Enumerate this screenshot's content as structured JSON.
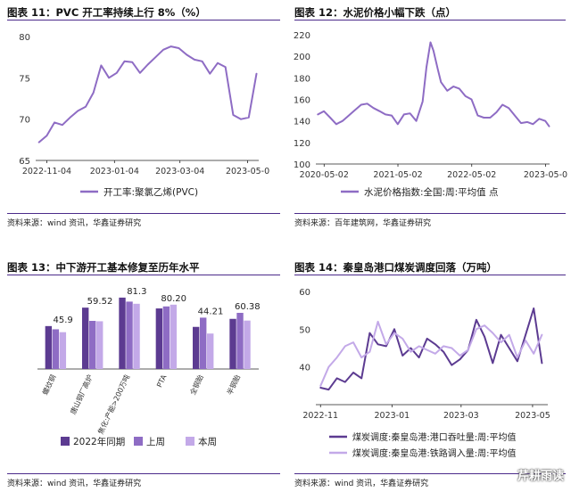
{
  "panels": [
    {
      "title": "图表 11：PVC 开工率持续上行 8%（%）",
      "source": "资料来源：wind 资讯，华鑫证券研究"
    },
    {
      "title": "图表 12：水泥价格小幅下跌（点）",
      "source": "资料来源：百年建筑网，华鑫证券研究"
    },
    {
      "title": "图表 13：中下游开工基本修复至历年水平",
      "source": "资料来源：wind 资讯，华鑫证券研究"
    },
    {
      "title": "图表 14：秦皇岛港口煤炭调度回落（万吨）",
      "source": "资料来源：wind 资讯，华鑫证券研究"
    }
  ],
  "watermark": "芹耕雨读",
  "colors": {
    "dark": "#5c3b91",
    "mid": "#8e6cc4",
    "light": "#c3a9e8",
    "title_bar": "#4b2a8a"
  },
  "chart_data": [
    {
      "type": "line",
      "title": "",
      "ylim": [
        65,
        80
      ],
      "yticks": [
        "65",
        "70",
        "75",
        "80"
      ],
      "xticks": [
        "2022-11-04",
        "2023-01-04",
        "2023-03-04",
        "2023-05-0"
      ],
      "grid": false,
      "legend_position": "bottom",
      "series": [
        {
          "name": "开工率:聚氯乙烯(PVC)",
          "x": [
            "2022-10-28",
            "2022-11-04",
            "2022-11-11",
            "2022-11-18",
            "2022-11-25",
            "2022-12-02",
            "2022-12-09",
            "2022-12-16",
            "2022-12-23",
            "2022-12-30",
            "2023-01-06",
            "2023-01-13",
            "2023-01-20",
            "2023-01-27",
            "2023-02-03",
            "2023-02-10",
            "2023-02-17",
            "2023-02-24",
            "2023-03-03",
            "2023-03-10",
            "2023-03-17",
            "2023-03-24",
            "2023-03-31",
            "2023-04-07",
            "2023-04-14",
            "2023-04-21",
            "2023-04-28",
            "2023-05-05",
            "2023-05-12"
          ],
          "y": [
            67.2,
            68.0,
            69.6,
            69.3,
            70.2,
            71.0,
            71.5,
            73.2,
            76.5,
            75.0,
            75.6,
            77.0,
            76.9,
            75.6,
            76.6,
            77.5,
            78.4,
            78.8,
            78.6,
            77.8,
            77.2,
            77.0,
            75.5,
            76.8,
            76.3,
            70.5,
            70.0,
            70.2,
            75.5
          ]
        }
      ]
    },
    {
      "type": "line",
      "title": "",
      "ylim": [
        100,
        220
      ],
      "yticks": [
        "100",
        "120",
        "140",
        "160",
        "180",
        "200",
        "220"
      ],
      "xticks": [
        "2020-05-02",
        "2021-05-02",
        "2022-05-02",
        "2023-05-0"
      ],
      "grid": false,
      "legend_position": "bottom",
      "series": [
        {
          "name": "水泥价格指数:全国:周:平均值 点",
          "x": [
            "2020-04-01",
            "2020-05-01",
            "2020-06-01",
            "2020-07-01",
            "2020-08-01",
            "2020-09-01",
            "2020-10-01",
            "2020-11-01",
            "2020-12-01",
            "2021-01-01",
            "2021-02-01",
            "2021-03-01",
            "2021-04-01",
            "2021-05-01",
            "2021-06-01",
            "2021-07-01",
            "2021-08-01",
            "2021-09-01",
            "2021-09-20",
            "2021-10-10",
            "2021-10-25",
            "2021-11-15",
            "2021-12-01",
            "2022-01-01",
            "2022-02-01",
            "2022-03-01",
            "2022-04-01",
            "2022-05-01",
            "2022-06-01",
            "2022-07-01",
            "2022-08-01",
            "2022-09-01",
            "2022-10-01",
            "2022-11-01",
            "2022-12-01",
            "2023-01-01",
            "2023-02-01",
            "2023-03-01",
            "2023-04-01",
            "2023-05-01",
            "2023-05-20"
          ],
          "y": [
            146,
            149,
            143,
            137,
            140,
            145,
            150,
            155,
            156,
            152,
            149,
            146,
            145,
            137,
            146,
            147,
            140,
            158,
            190,
            213,
            205,
            188,
            176,
            168,
            172,
            170,
            163,
            160,
            145,
            143,
            143,
            148,
            155,
            152,
            145,
            138,
            139,
            137,
            142,
            140,
            135
          ]
        }
      ]
    },
    {
      "type": "bar",
      "title": "",
      "categories": [
        "螺纹钢",
        "唐山钢厂高炉",
        "焦化:产能>200万吨",
        "PTA",
        "全钢胎",
        "半钢胎"
      ],
      "series": [
        {
          "name": "2022年同期",
          "values": [
            53.5,
            76.5,
            89.0,
            75.5,
            52.5,
            62.5
          ]
        },
        {
          "name": "上周",
          "values": [
            49.5,
            60.0,
            84.0,
            78.0,
            64.0,
            70.0
          ]
        },
        {
          "name": "本周",
          "values": [
            45.9,
            59.52,
            81.3,
            80.2,
            44.21,
            60.38
          ]
        }
      ],
      "data_labels": [
        "45.9",
        "59.52",
        "81.3",
        "80.20",
        "44.21",
        "60.38"
      ],
      "ylim": [
        0,
        100
      ],
      "grid": false,
      "legend_position": "bottom"
    },
    {
      "type": "line",
      "title": "",
      "ylim": [
        30,
        60
      ],
      "yticks": [
        "40",
        "50",
        "60"
      ],
      "xticks": [
        "2022-11",
        "2023-01",
        "2023-03",
        "2023-05"
      ],
      "grid": false,
      "legend_position": "bottom",
      "series": [
        {
          "name": "煤炭调度:秦皇岛港:港口吞吐量:周:平均值",
          "x": [
            "2022-11-01",
            "2022-11-08",
            "2022-11-15",
            "2022-11-22",
            "2022-11-29",
            "2022-12-06",
            "2022-12-13",
            "2022-12-20",
            "2022-12-27",
            "2023-01-03",
            "2023-01-10",
            "2023-01-17",
            "2023-01-24",
            "2023-01-31",
            "2023-02-07",
            "2023-02-14",
            "2023-02-21",
            "2023-02-28",
            "2023-03-07",
            "2023-03-14",
            "2023-03-21",
            "2023-03-28",
            "2023-04-04",
            "2023-04-11",
            "2023-04-18",
            "2023-04-25",
            "2023-05-02",
            "2023-05-09"
          ],
          "y": [
            34.5,
            34.0,
            37.0,
            36.0,
            38.5,
            37.0,
            49.0,
            46.0,
            45.5,
            50.0,
            43.0,
            45.0,
            42.5,
            47.5,
            46.0,
            44.0,
            40.5,
            42.0,
            44.5,
            52.5,
            48.0,
            41.0,
            48.5,
            45.0,
            41.5,
            48.5,
            55.5,
            41.0
          ]
        },
        {
          "name": "煤炭调度:秦皇岛港:铁路调入量:周:平均值",
          "x": [
            "2022-11-01",
            "2022-11-08",
            "2022-11-15",
            "2022-11-22",
            "2022-11-29",
            "2022-12-06",
            "2022-12-13",
            "2022-12-20",
            "2022-12-27",
            "2023-01-03",
            "2023-01-10",
            "2023-01-17",
            "2023-01-24",
            "2023-01-31",
            "2023-02-07",
            "2023-02-14",
            "2023-02-21",
            "2023-02-28",
            "2023-03-07",
            "2023-03-14",
            "2023-03-21",
            "2023-03-28",
            "2023-04-04",
            "2023-04-11",
            "2023-04-18",
            "2023-04-25",
            "2023-05-02",
            "2023-05-09"
          ],
          "y": [
            35.0,
            40.0,
            42.5,
            45.5,
            46.5,
            42.5,
            44.0,
            52.0,
            46.0,
            49.0,
            47.5,
            44.0,
            45.5,
            44.5,
            43.5,
            45.5,
            45.0,
            43.0,
            44.5,
            50.0,
            51.0,
            49.0,
            46.5,
            48.5,
            42.5,
            47.0,
            43.5,
            48.5
          ]
        }
      ]
    }
  ]
}
